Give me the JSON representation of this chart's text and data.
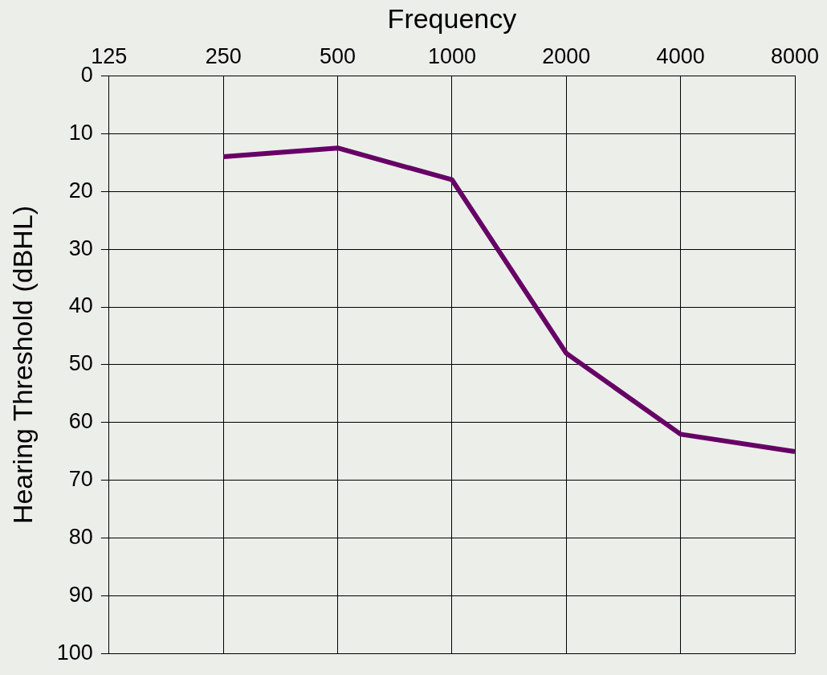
{
  "chart_data": {
    "type": "line",
    "xlabel": "Frequency",
    "ylabel": "Hearing Threshold (dBHL)",
    "categories": [
      "125",
      "250",
      "500",
      "1000",
      "2000",
      "4000",
      "8000"
    ],
    "series": [
      {
        "color": "#660066",
        "values": [
          null,
          14,
          12.5,
          18,
          48,
          62,
          65
        ]
      }
    ],
    "ylim": [
      100,
      0
    ],
    "yticks": [
      0,
      10,
      20,
      30,
      40,
      50,
      60,
      70,
      80,
      90,
      100
    ],
    "grid": true,
    "legend": false,
    "marker": "none",
    "line_style": "solid"
  }
}
